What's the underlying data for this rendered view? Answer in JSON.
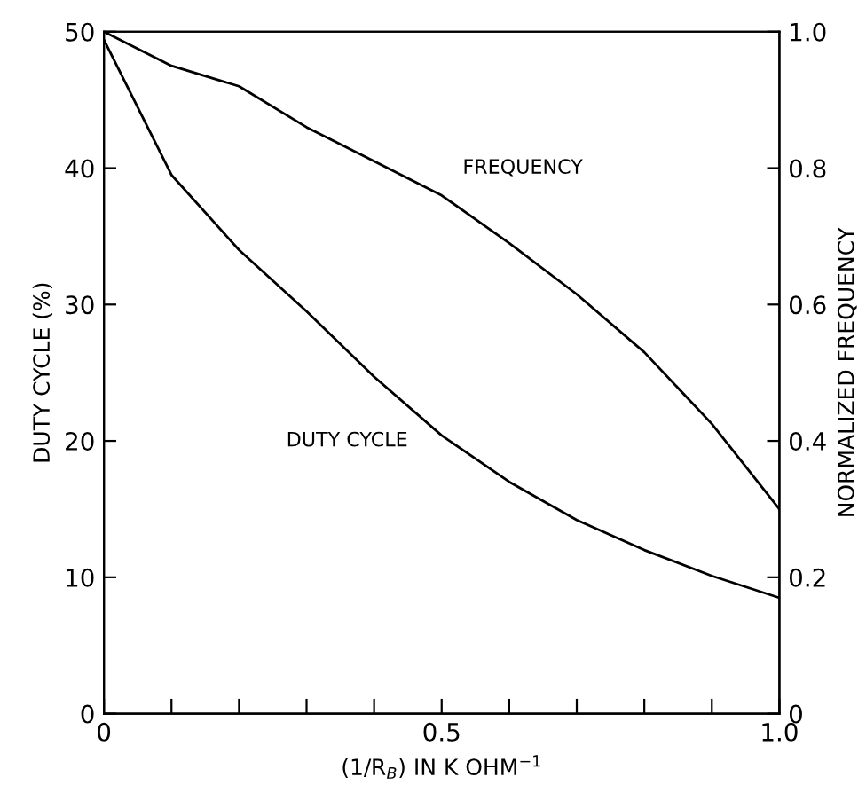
{
  "chart_data": {
    "type": "line",
    "xlabel": "(1/R$_{B}$) IN K OHM$^{−1}$",
    "ylabel": "DUTY CYCLE (%)",
    "y2label": "NORMALIZED FREQUENCY",
    "x": [
      0,
      0.1,
      0.2,
      0.3,
      0.4,
      0.5,
      0.6,
      0.7,
      0.8,
      0.9,
      1.0
    ],
    "series": [
      {
        "color": "#000000",
        "values": [
          49.4,
          39.5,
          34,
          29.5,
          24.7,
          20.4,
          17,
          14.2,
          12,
          10.1,
          8.5
        ]
      },
      {
        "color": "#000000",
        "axis": "y2",
        "values": [
          1.0,
          0.95,
          0.92,
          0.86,
          0.81,
          0.76,
          0.69,
          0.615,
          0.53,
          0.425,
          0.3
        ]
      }
    ],
    "annotations": [
      "DUTY CYCLE",
      "FREQUENCY"
    ],
    "xlim": [
      0,
      1.0
    ],
    "xticks": [
      0,
      {
        "value": 0.1,
        "label": null
      },
      {
        "value": 0.2,
        "label": null
      },
      {
        "value": 0.3,
        "label": null
      },
      {
        "value": 0.4,
        "label": null
      },
      0.5,
      {
        "value": 0.6,
        "label": null
      },
      {
        "value": 0.7,
        "label": null
      },
      {
        "value": 0.8,
        "label": null
      },
      {
        "value": 0.9,
        "label": null
      },
      {
        "value": 1.0,
        "label": "1.0"
      }
    ],
    "ylim": [
      0,
      50
    ],
    "yticks": [
      0,
      10,
      20,
      30,
      40,
      50
    ],
    "y2lim": [
      0,
      1.0
    ],
    "y2ticks": [
      0,
      0.2,
      0.4,
      0.6,
      0.8,
      {
        "value": 1.0,
        "label": "1.0"
      }
    ],
    "grid": false,
    "legend": false,
    "marker": "none",
    "line_style": "solid"
  }
}
